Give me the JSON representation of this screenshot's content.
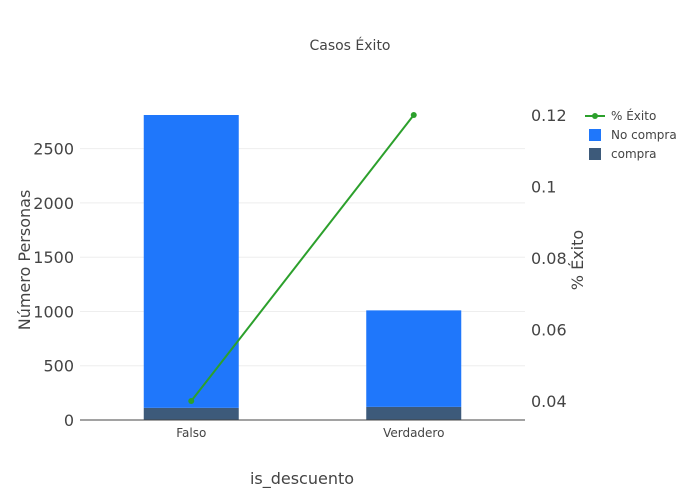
{
  "chart_data": {
    "type": "bar",
    "title": "Casos Éxito",
    "xlabel": "is_descuento",
    "ylabel": "Número Personas",
    "y2label": "% Éxito",
    "categories": [
      "Falso",
      "Verdadero"
    ],
    "ylim": [
      0,
      2810
    ],
    "y2lim": [
      0.0347,
      0.12
    ],
    "y_ticks": [
      0,
      500,
      1000,
      1500,
      2000,
      2500
    ],
    "y2_ticks": [
      0.04,
      0.06,
      0.08,
      0.1,
      0.12
    ],
    "stacked": true,
    "grid": true,
    "legend_position": "top-right",
    "series": [
      {
        "name": "compra",
        "type": "bar",
        "axis": "y",
        "values": [
          112,
          121
        ],
        "color": "#3d5a7a"
      },
      {
        "name": "No compra",
        "type": "bar",
        "axis": "y",
        "values": [
          2698,
          889
        ],
        "color": "#1f77fb"
      },
      {
        "name": "% Éxito",
        "type": "line",
        "axis": "y2",
        "values": [
          0.04,
          0.12
        ],
        "color": "#2ca02c"
      }
    ],
    "legend": [
      "% Éxito",
      "No compra",
      "compra"
    ]
  }
}
